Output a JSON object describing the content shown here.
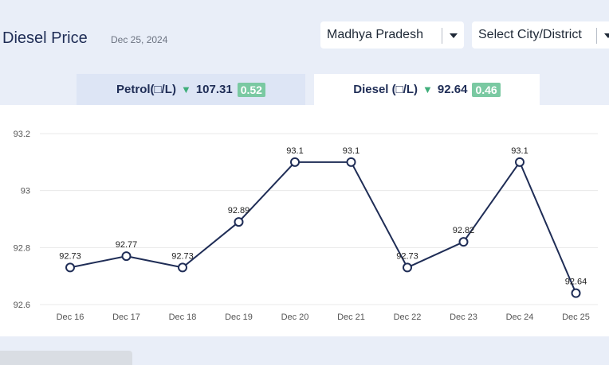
{
  "header": {
    "title": "Diesel Price",
    "date": "Dec 25, 2024"
  },
  "filters": {
    "state": "Madhya Pradesh",
    "city": "Select City/District"
  },
  "tabs": {
    "petrol": {
      "label": "Petrol(□/L)",
      "price": "107.31",
      "change": "0.52",
      "trend": "down"
    },
    "diesel": {
      "label": "Diesel (□/L)",
      "price": "92.64",
      "change": "0.46",
      "trend": "down",
      "active": true
    }
  },
  "colors": {
    "line": "#1f2d56",
    "change_badge": "#7ac9a2",
    "down_arrow": "#3fae7a"
  },
  "chart_data": {
    "type": "line",
    "categories": [
      "Dec 16",
      "Dec 17",
      "Dec 18",
      "Dec 19",
      "Dec 20",
      "Dec 21",
      "Dec 22",
      "Dec 23",
      "Dec 24",
      "Dec 25"
    ],
    "values": [
      92.73,
      92.77,
      92.73,
      92.89,
      93.1,
      93.1,
      92.73,
      92.82,
      93.1,
      92.64
    ],
    "data_labels": [
      "92.73",
      "92.77",
      "92.73",
      "92.89",
      "93.1",
      "93.1",
      "92.73",
      "92.82",
      "93.1",
      "92.64"
    ],
    "y_ticks": [
      "93.2",
      "93",
      "92.8",
      "92.6"
    ],
    "ylim": [
      92.6,
      93.2
    ],
    "grid": true
  }
}
